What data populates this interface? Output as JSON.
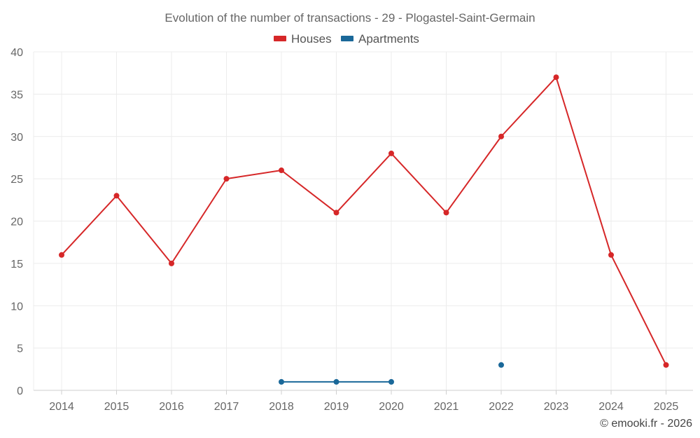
{
  "chart_data": {
    "type": "line",
    "title": "Evolution of the number of transactions - 29 - Plogastel-Saint-Germain",
    "categories": [
      "2014",
      "2015",
      "2016",
      "2017",
      "2018",
      "2019",
      "2020",
      "2021",
      "2022",
      "2023",
      "2024",
      "2025"
    ],
    "series": [
      {
        "name": "Houses",
        "color": "#d62728",
        "values": [
          16,
          23,
          15,
          25,
          26,
          21,
          28,
          21,
          30,
          37,
          16,
          3
        ]
      },
      {
        "name": "Apartments",
        "color": "#1a6899",
        "values": [
          null,
          null,
          null,
          null,
          1,
          1,
          1,
          null,
          3,
          null,
          null,
          null
        ]
      }
    ],
    "ylim": [
      0,
      40
    ],
    "yticks": [
      0,
      5,
      10,
      15,
      20,
      25,
      30,
      35,
      40
    ],
    "xlabel": "",
    "ylabel": "",
    "grid": true,
    "legend_position": "top-center"
  },
  "credit": "© emooki.fr - 2026"
}
